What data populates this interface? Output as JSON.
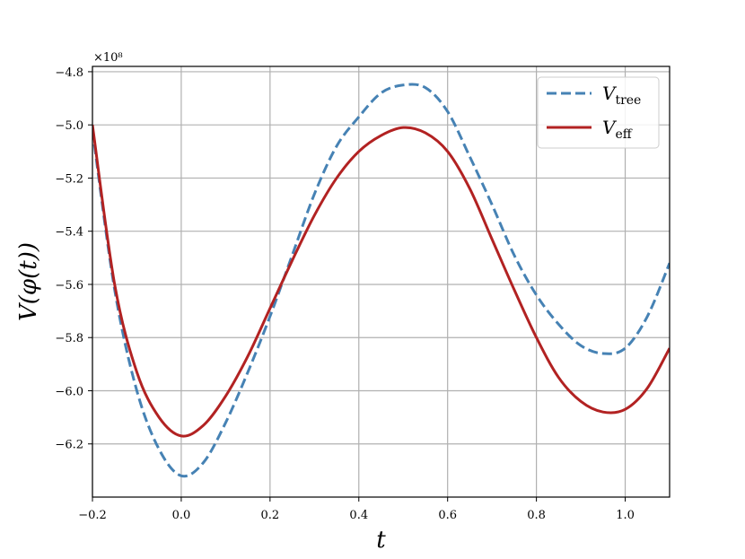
{
  "chart_data": {
    "type": "line",
    "xlabel": "t",
    "ylabel": "V(φ(t))",
    "offset_text": "×10⁸",
    "xlim": [
      -0.2,
      1.1
    ],
    "ylim": [
      -6.4,
      -4.78
    ],
    "xticks": [
      -0.2,
      0.0,
      0.2,
      0.4,
      0.6,
      0.8,
      1.0
    ],
    "xtick_labels": [
      "−0.2",
      "0.0",
      "0.2",
      "0.4",
      "0.6",
      "0.8",
      "1.0"
    ],
    "yticks": [
      -6.2,
      -6.0,
      -5.8,
      -5.6,
      -5.4,
      -5.2,
      -5.0,
      -4.8
    ],
    "ytick_labels": [
      "−6.2",
      "−6.0",
      "−5.8",
      "−5.6",
      "−5.4",
      "−5.2",
      "−5.0",
      "−4.8"
    ],
    "grid": true,
    "legend_position": "top-right",
    "x": [
      -0.2,
      -0.15,
      -0.1,
      -0.05,
      0.0,
      0.05,
      0.1,
      0.15,
      0.2,
      0.25,
      0.3,
      0.35,
      0.4,
      0.45,
      0.5,
      0.55,
      0.6,
      0.65,
      0.7,
      0.75,
      0.8,
      0.85,
      0.9,
      0.95,
      1.0,
      1.05,
      1.1
    ],
    "series": [
      {
        "name": "V",
        "name_sub": "tree",
        "style": "dashed",
        "color": "#4682B4",
        "values": [
          -5.02,
          -5.62,
          -6.0,
          -6.22,
          -6.32,
          -6.27,
          -6.12,
          -5.93,
          -5.72,
          -5.49,
          -5.26,
          -5.08,
          -4.97,
          -4.88,
          -4.85,
          -4.86,
          -4.95,
          -5.12,
          -5.3,
          -5.49,
          -5.64,
          -5.75,
          -5.83,
          -5.86,
          -5.84,
          -5.72,
          -5.52
        ]
      },
      {
        "name": "V",
        "name_sub": "eff",
        "style": "solid",
        "color": "#B22222",
        "values": [
          -5.0,
          -5.6,
          -5.93,
          -6.1,
          -6.17,
          -6.13,
          -6.02,
          -5.87,
          -5.69,
          -5.51,
          -5.34,
          -5.2,
          -5.1,
          -5.04,
          -5.01,
          -5.03,
          -5.1,
          -5.24,
          -5.43,
          -5.62,
          -5.8,
          -5.95,
          -6.04,
          -6.08,
          -6.07,
          -5.99,
          -5.84
        ]
      }
    ]
  }
}
